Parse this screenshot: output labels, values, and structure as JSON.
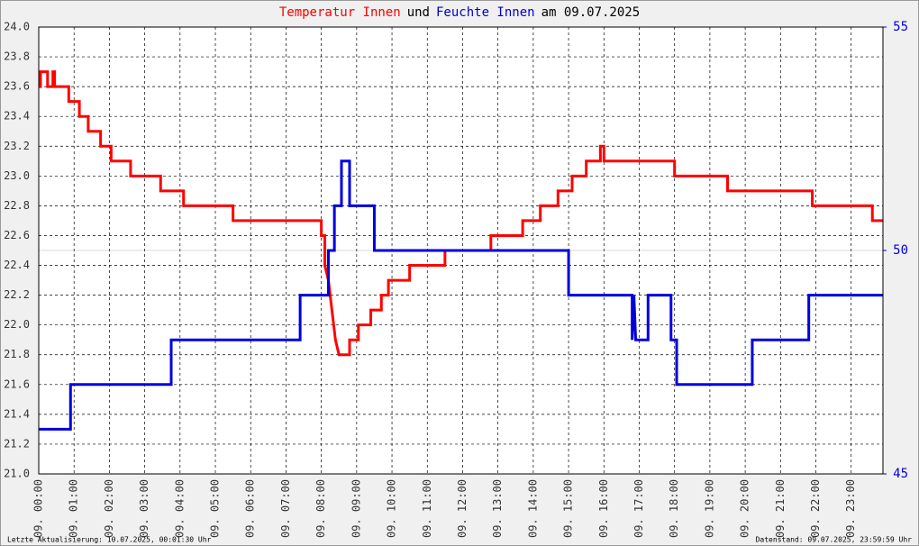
{
  "chart_data": {
    "type": "line",
    "title": [
      "Temperatur Innen",
      "und",
      "Feuchte Innen",
      "am 09.07.2025"
    ],
    "title_colors": [
      "#ff0000",
      "#000000",
      "#0000cc",
      "#000000"
    ],
    "footer_left": "Letzte Aktualisierung: 10.07.2025, 00:01:30 Uhr",
    "footer_right": "Datenstand: 09.07.2025, 23:59:59 Uhr",
    "grid": true,
    "xlim": [
      0,
      23.9
    ],
    "xticks": [
      {
        "value": 0,
        "label": "09. 00:00"
      },
      {
        "value": 1,
        "label": "09. 01:00"
      },
      {
        "value": 2,
        "label": "09. 02:00"
      },
      {
        "value": 3,
        "label": "09. 03:00"
      },
      {
        "value": 4,
        "label": "09. 04:00"
      },
      {
        "value": 5,
        "label": "09. 05:00"
      },
      {
        "value": 6,
        "label": "09. 06:00"
      },
      {
        "value": 7,
        "label": "09. 07:00"
      },
      {
        "value": 8,
        "label": "09. 08:00"
      },
      {
        "value": 9,
        "label": "09. 09:00"
      },
      {
        "value": 10,
        "label": "09. 10:00"
      },
      {
        "value": 11,
        "label": "09. 11:00"
      },
      {
        "value": 12,
        "label": "09. 12:00"
      },
      {
        "value": 13,
        "label": "09. 13:00"
      },
      {
        "value": 14,
        "label": "09. 14:00"
      },
      {
        "value": 15,
        "label": "09. 15:00"
      },
      {
        "value": 16,
        "label": "09. 16:00"
      },
      {
        "value": 17,
        "label": "09. 17:00"
      },
      {
        "value": 18,
        "label": "09. 18:00"
      },
      {
        "value": 19,
        "label": "09. 19:00"
      },
      {
        "value": 20,
        "label": "09. 20:00"
      },
      {
        "value": 21,
        "label": "09. 21:00"
      },
      {
        "value": 22,
        "label": "09. 22:00"
      },
      {
        "value": 23,
        "label": "09. 23:00"
      }
    ],
    "ylim": [
      21.0,
      24.0
    ],
    "yticks": [
      {
        "value": 21.0,
        "label": "21.0"
      },
      {
        "value": 21.2,
        "label": "21.2"
      },
      {
        "value": 21.4,
        "label": "21.4"
      },
      {
        "value": 21.6,
        "label": "21.6"
      },
      {
        "value": 21.8,
        "label": "21.8"
      },
      {
        "value": 22.0,
        "label": "22.0"
      },
      {
        "value": 22.2,
        "label": "22.2"
      },
      {
        "value": 22.4,
        "label": "22.4"
      },
      {
        "value": 22.6,
        "label": "22.6"
      },
      {
        "value": 22.8,
        "label": "22.8"
      },
      {
        "value": 23.0,
        "label": "23.0"
      },
      {
        "value": 23.2,
        "label": "23.2"
      },
      {
        "value": 23.4,
        "label": "23.4"
      },
      {
        "value": 23.6,
        "label": "23.6"
      },
      {
        "value": 23.8,
        "label": "23.8"
      },
      {
        "value": 24.0,
        "label": "24.0"
      }
    ],
    "y2lim": [
      45,
      55
    ],
    "y2ticks": [
      45,
      50,
      55
    ],
    "series": [
      {
        "name": "Temperatur Innen",
        "color": "#ff0000",
        "x": [
          0,
          0.05,
          0.05,
          0.25,
          0.25,
          0.4,
          0.4,
          0.45,
          0.45,
          0.85,
          0.85,
          1.15,
          1.15,
          1.4,
          1.4,
          1.75,
          1.75,
          2.05,
          2.05,
          2.6,
          2.6,
          3.45,
          3.45,
          4.1,
          4.1,
          5.5,
          5.5,
          8.0,
          8.0,
          8.1,
          8.1,
          8.2,
          8.3,
          8.4,
          8.5,
          8.8,
          8.8,
          9.05,
          9.05,
          9.4,
          9.4,
          9.7,
          9.7,
          9.9,
          9.9,
          10.5,
          10.5,
          11.5,
          11.5,
          12.8,
          12.8,
          13.7,
          13.7,
          14.2,
          14.2,
          14.7,
          14.7,
          15.1,
          15.1,
          15.5,
          15.5,
          15.9,
          15.9,
          16.0,
          16.0,
          18.0,
          18.0,
          19.5,
          19.5,
          21.9,
          21.9,
          23.6,
          23.6,
          23.9
        ],
        "values": [
          23.6,
          23.6,
          23.7,
          23.7,
          23.6,
          23.6,
          23.7,
          23.7,
          23.6,
          23.6,
          23.5,
          23.5,
          23.4,
          23.4,
          23.3,
          23.3,
          23.2,
          23.2,
          23.1,
          23.1,
          23.0,
          23.0,
          22.9,
          22.9,
          22.8,
          22.8,
          22.7,
          22.7,
          22.6,
          22.6,
          22.4,
          22.3,
          22.1,
          21.9,
          21.8,
          21.8,
          21.9,
          21.9,
          22.0,
          22.0,
          22.1,
          22.1,
          22.2,
          22.2,
          22.3,
          22.3,
          22.4,
          22.4,
          22.5,
          22.5,
          22.6,
          22.6,
          22.7,
          22.7,
          22.8,
          22.8,
          22.9,
          22.9,
          23.0,
          23.0,
          23.1,
          23.1,
          23.2,
          23.2,
          23.1,
          23.1,
          23.0,
          23.0,
          22.9,
          22.9,
          22.8,
          22.8,
          22.7,
          22.7
        ]
      },
      {
        "name": "Feuchte Innen",
        "color": "#0000dd",
        "axis": "y2",
        "x": [
          0,
          0.9,
          0.9,
          3.75,
          3.75,
          7.4,
          7.4,
          8.2,
          8.2,
          8.37,
          8.37,
          8.57,
          8.57,
          8.8,
          8.8,
          9.5,
          9.5,
          15.0,
          15.0,
          16.8,
          16.8,
          16.85,
          16.9,
          17.25,
          17.25,
          17.9,
          17.9,
          18.06,
          18.06,
          20.2,
          20.2,
          21.8,
          21.8,
          23.9
        ],
        "values": [
          46,
          46,
          47,
          47,
          48,
          48,
          49,
          49,
          50,
          50,
          51,
          51,
          52,
          52,
          51,
          51,
          50,
          50,
          49,
          49,
          48,
          49,
          48,
          48,
          49,
          49,
          48,
          48,
          47,
          47,
          48,
          48,
          49,
          49
        ]
      }
    ]
  }
}
